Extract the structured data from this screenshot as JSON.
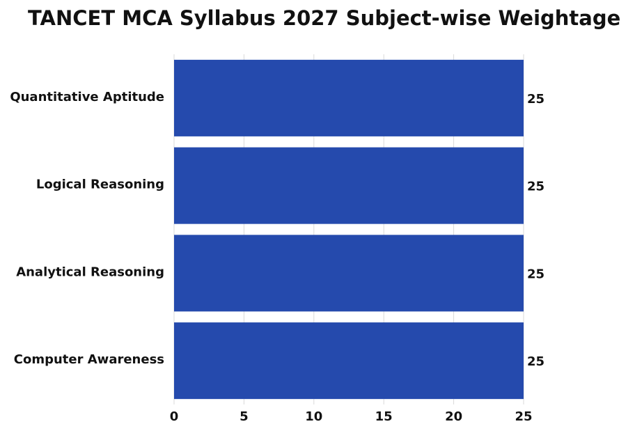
{
  "chart_data": {
    "type": "bar",
    "orientation": "horizontal",
    "title": "TANCET MCA Syllabus 2027 Subject-wise Weightage",
    "categories": [
      "Quantitative Aptitude",
      "Logical Reasoning",
      "Analytical Reasoning",
      "Computer Awareness"
    ],
    "values": [
      25,
      25,
      25,
      25
    ],
    "color": "#254aad",
    "xlim": [
      0,
      25
    ],
    "xticks": [
      0,
      5,
      10,
      15,
      20,
      25
    ],
    "grid": true
  }
}
